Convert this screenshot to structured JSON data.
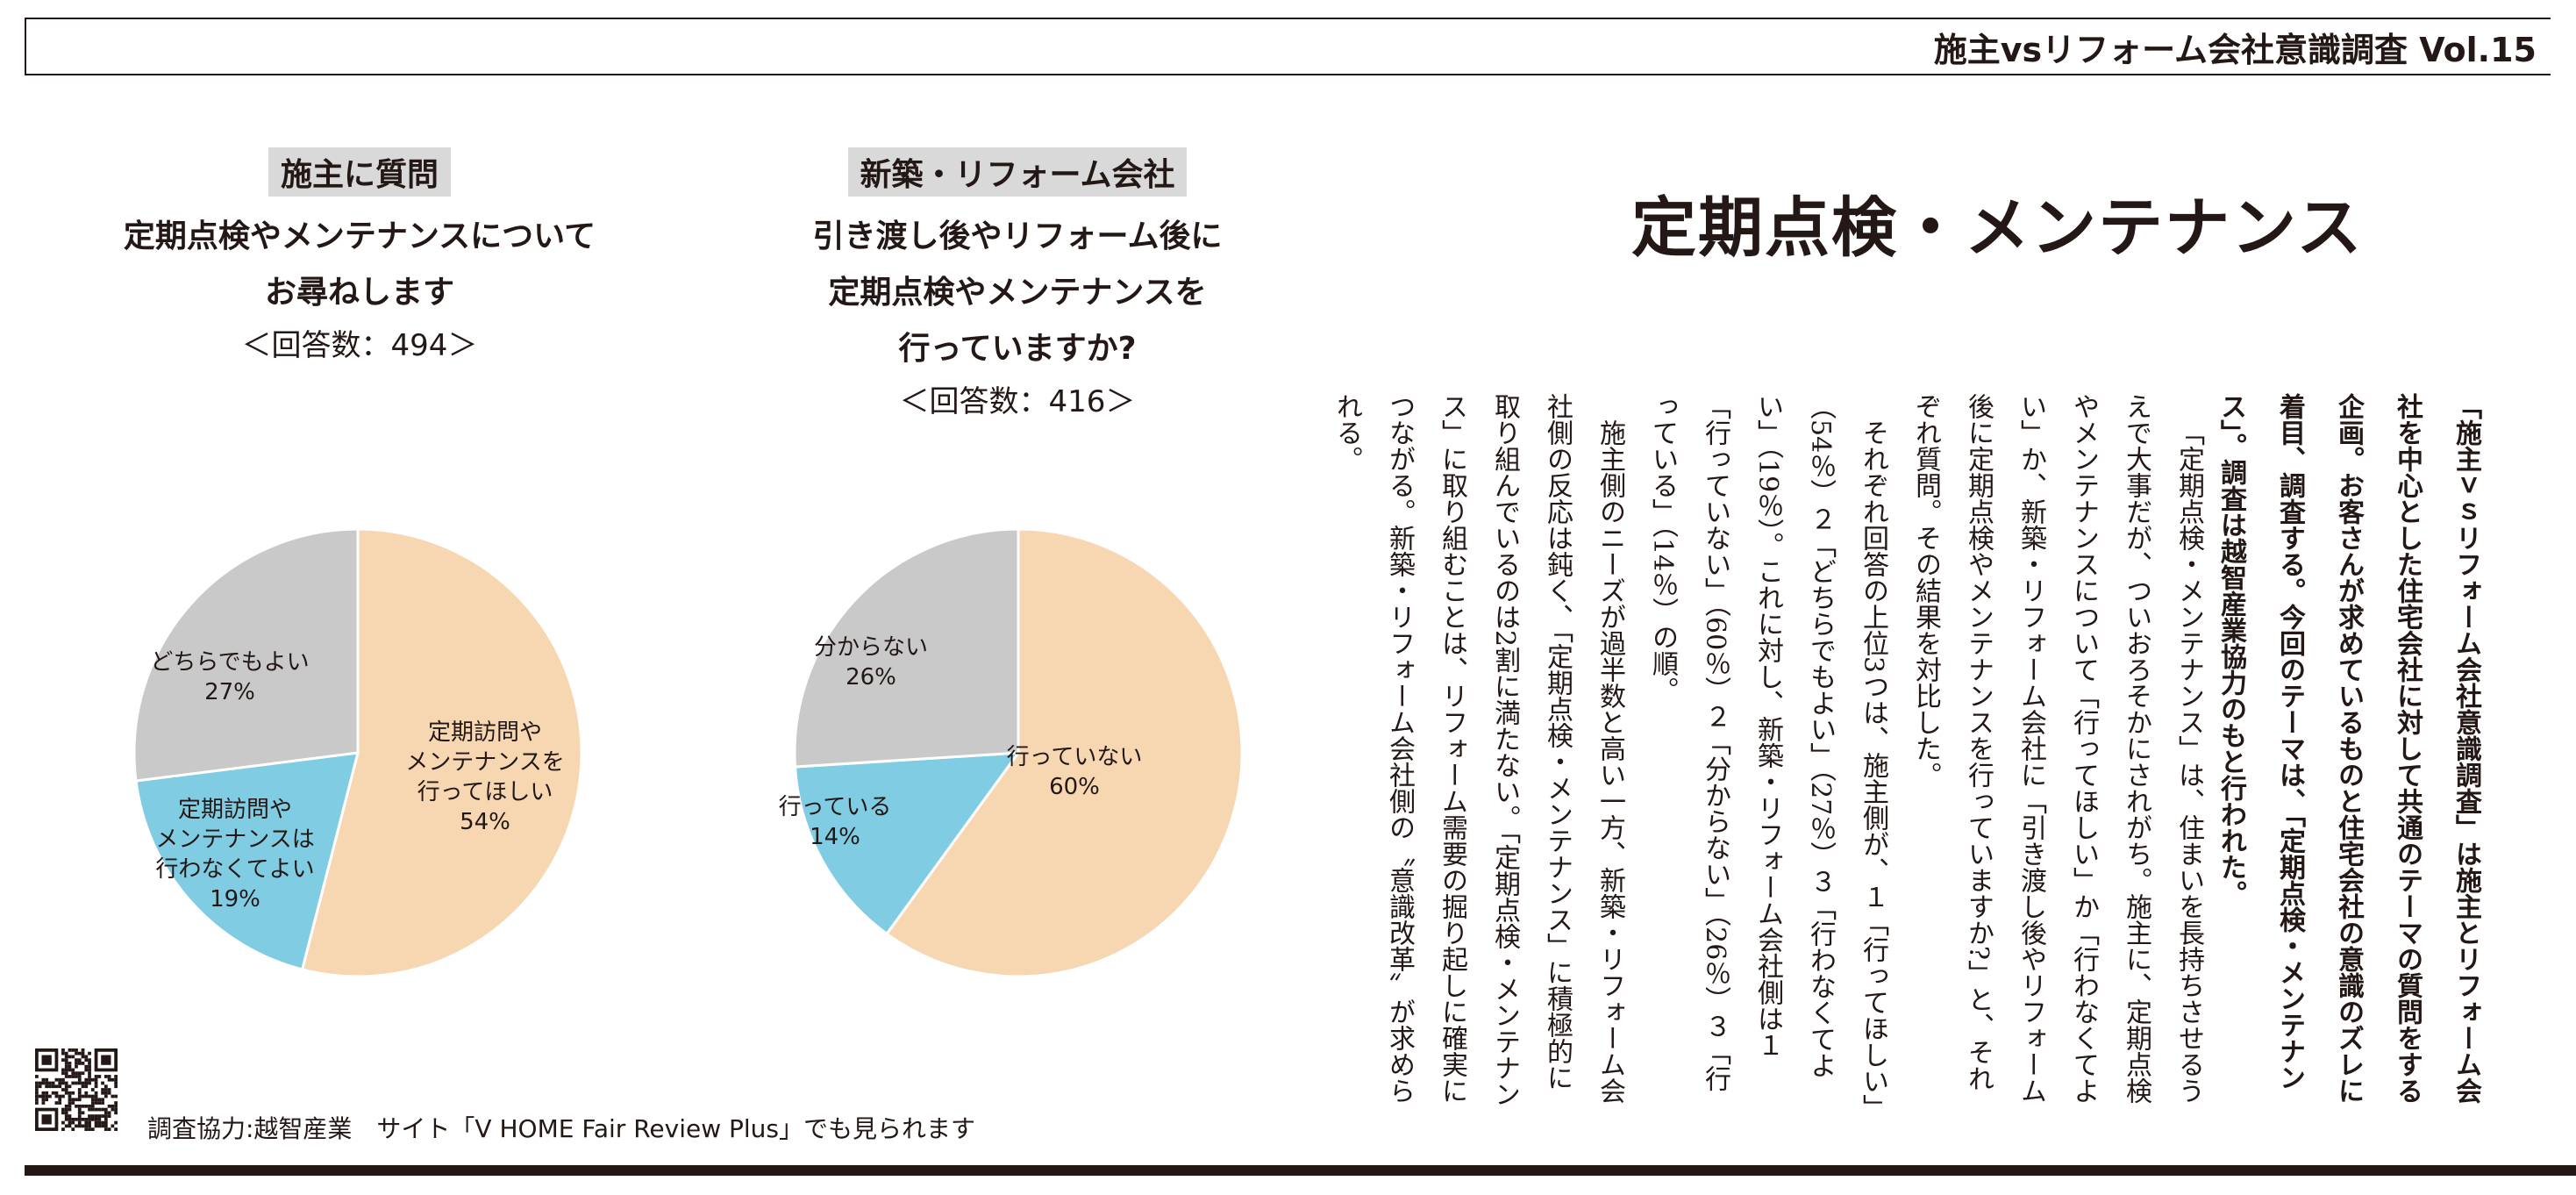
{
  "header": {
    "title": "施主vsリフォーム会社意識調査 Vol.15"
  },
  "main_title": "定期点検・メンテナンス",
  "survey_left": {
    "tag": "施主に質問",
    "question_lines": [
      "定期点検やメンテナンスについて",
      "お尋ねします"
    ],
    "count": "＜回答数：494＞"
  },
  "survey_right": {
    "tag": "新築・リフォーム会社",
    "question_lines": [
      "引き渡し後やリフォーム後に",
      "定期点検やメンテナンスを",
      "行っていますか?"
    ],
    "count": "＜回答数：416＞"
  },
  "colors": {
    "peach": "#f7d6b2",
    "blue": "#80cde3",
    "gray": "#c9c9c9"
  },
  "chart_data": [
    {
      "type": "pie",
      "title": "定期点検やメンテナンスについてお尋ねします",
      "slices": [
        {
          "label": "定期訪問やメンテナンスを行ってほしい",
          "lines": [
            "定期訪問や",
            "メンテナンスを",
            "行ってほしい",
            "54%"
          ],
          "value": 54,
          "color": "#f7d6b2"
        },
        {
          "label": "定期訪問やメンテナンスは行わなくてよい",
          "lines": [
            "定期訪問や",
            "メンテナンスは",
            "行わなくてよい",
            "19%"
          ],
          "value": 19,
          "color": "#80cde3"
        },
        {
          "label": "どちらでもよい",
          "lines": [
            "どちらでもよい",
            "27%"
          ],
          "value": 27,
          "color": "#c9c9c9"
        }
      ]
    },
    {
      "type": "pie",
      "title": "引き渡し後やリフォーム後に定期点検やメンテナンスを行っていますか?",
      "slices": [
        {
          "label": "行っていない",
          "lines": [
            "行っていない",
            "60%"
          ],
          "value": 60,
          "color": "#f7d6b2"
        },
        {
          "label": "行っている",
          "lines": [
            "行っている",
            "14%"
          ],
          "value": 14,
          "color": "#80cde3"
        },
        {
          "label": "分からない",
          "lines": [
            "分からない",
            "26%"
          ],
          "value": 26,
          "color": "#c9c9c9"
        }
      ]
    }
  ],
  "intro": "「施主ｖｓリフォーム会社意識調査」は施主とリフォーム会社を中心とした住宅会社に対して共通のテーマの質問をする企画。お客さんが求めているものと住宅会社の意識のズレに着目、調査する。今回のテーマは、「定期点検・メンテナンス」。調査は越智産業協力のもと行われた。",
  "body": [
    "「定期点検・メンテナンス」は、住まいを長持ちさせるうえで大事だが、ついおろそかにされがち。施主に、定期点検やメンテナンスについて「行ってほしい」か「行わなくてよい」か、新築・リフォーム会社に「引き渡し後やリフォーム後に定期点検やメンテナンスを行っていますか?」と、それぞれ質問。その結果を対比した。",
    "それぞれ回答の上位3つは、施主側が、１「行ってほしい」（54％）２「どちらでもよい」（27％）３「行わなくてよい」（19％）。これに対し、新築・リフォーム会社側は１「行っていない」（60％）２「分からない」（26％）３「行っている」（14％）の順。",
    "施主側のニーズが過半数と高い一方、新築・リフォーム会社側の反応は鈍く、「定期点検・メンテナンス」に積極的に取り組んでいるのは2割に満たない。「定期点検・メンテナンス」に取り組むことは、リフォーム需要の掘り起しに確実につながる。新築・リフォーム会社側の〝意識改革〟が求められる。"
  ],
  "footer": {
    "text": "調査協力:越智産業　サイト「V HOME Fair Review Plus」でも見られます"
  }
}
